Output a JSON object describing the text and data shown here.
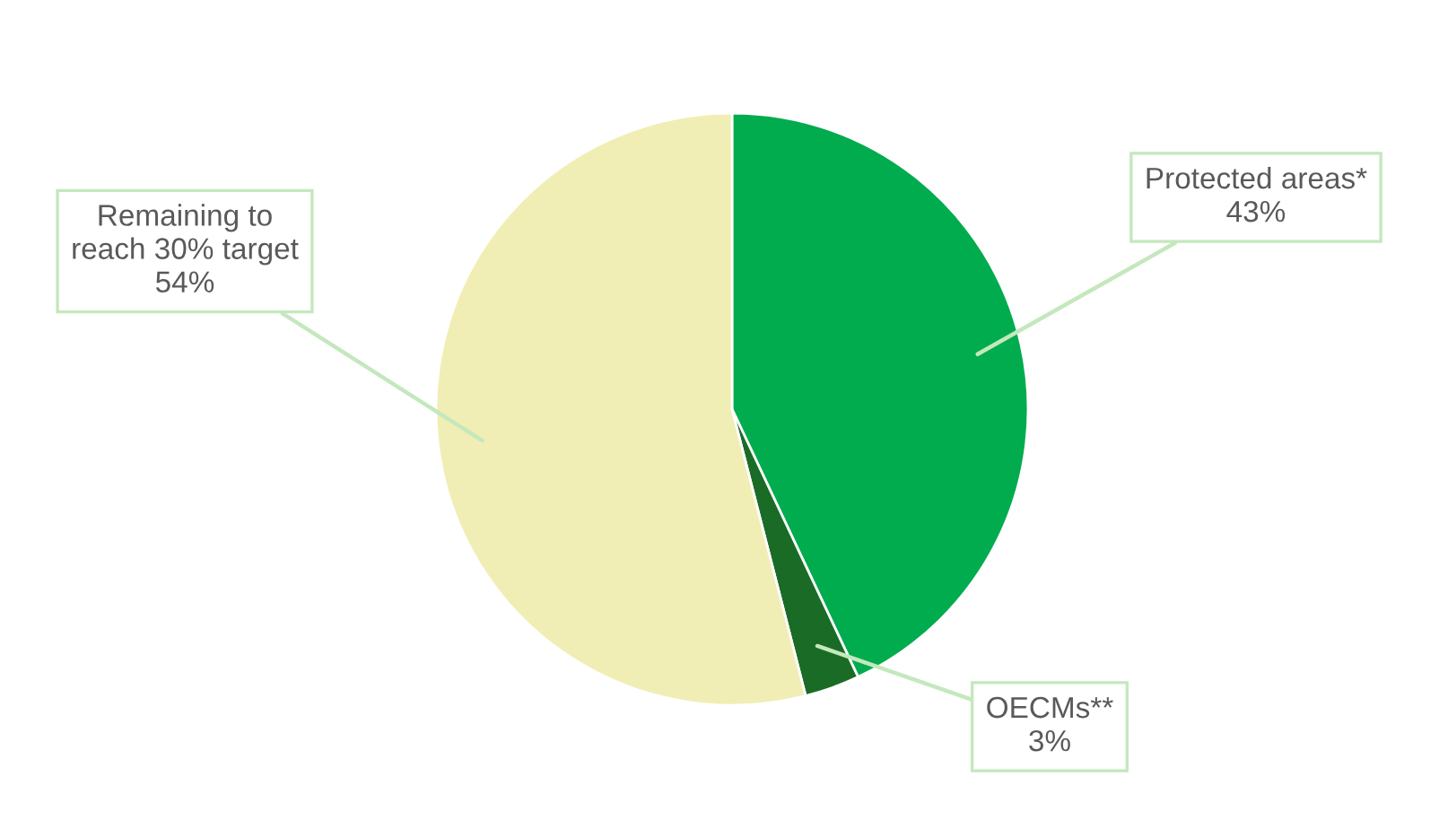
{
  "chart_data": {
    "type": "pie",
    "categories": [
      "Protected areas*",
      "OECMs**",
      "Remaining to reach 30% target"
    ],
    "values": [
      43,
      3,
      54
    ],
    "colors": [
      "#00ac4e",
      "#1a6b26",
      "#f0eeb4"
    ],
    "value_labels": [
      "43%",
      "3%",
      "54%"
    ],
    "legend": false
  }
}
